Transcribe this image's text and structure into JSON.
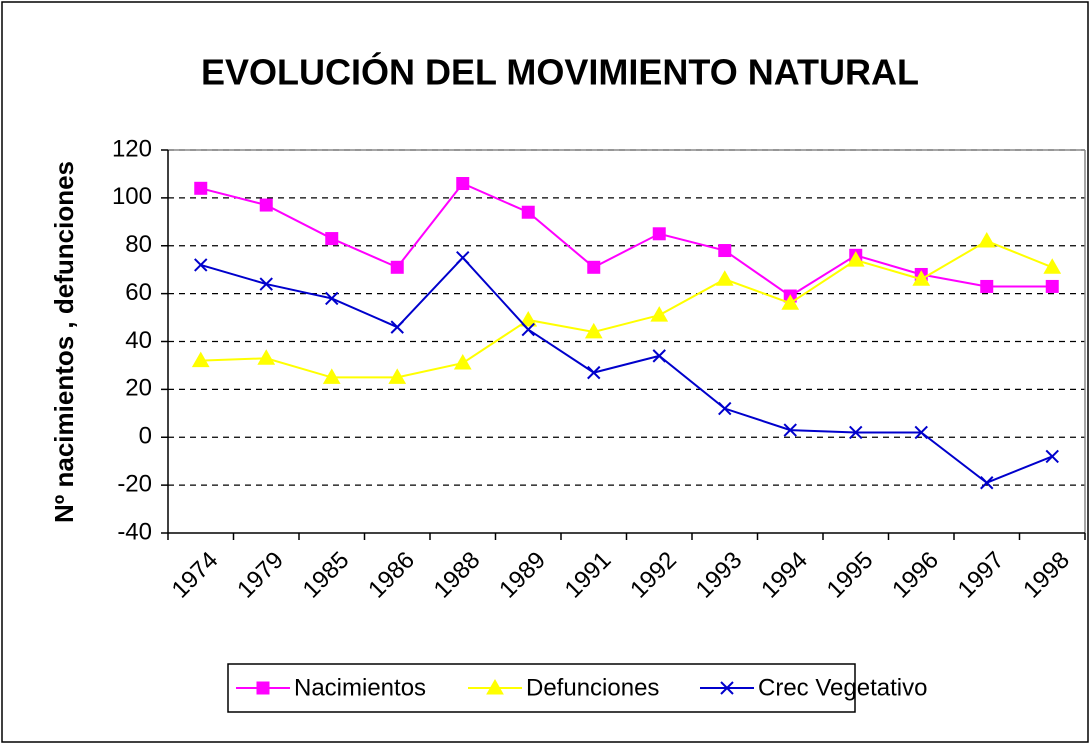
{
  "chart_data": {
    "type": "line",
    "title": "EVOLUCIÓN DEL MOVIMIENTO NATURAL",
    "y_label": "Nº nacimientos , defunciones",
    "categories": [
      "1974",
      "1979",
      "1985",
      "1986",
      "1988",
      "1989",
      "1991",
      "1992",
      "1993",
      "1994",
      "1995",
      "1996",
      "1997",
      "1998"
    ],
    "series": [
      {
        "name": "Nacimientos",
        "color": "#ff00ff",
        "marker": "square",
        "values": [
          104,
          97,
          83,
          71,
          106,
          94,
          71,
          85,
          78,
          59,
          76,
          68,
          63,
          63
        ]
      },
      {
        "name": "Defunciones",
        "color": "#ffff00",
        "marker": "triangle",
        "values": [
          32,
          33,
          25,
          25,
          31,
          49,
          44,
          51,
          66,
          56,
          74,
          66,
          82,
          71
        ]
      },
      {
        "name": "Crec Vegetativo",
        "color": "#0000cc",
        "marker": "x",
        "values": [
          72,
          64,
          58,
          46,
          75,
          45,
          27,
          34,
          12,
          3,
          2,
          2,
          -19,
          -8
        ]
      }
    ],
    "ylim": [
      -40,
      120
    ],
    "yticks": [
      -40,
      -20,
      0,
      20,
      40,
      60,
      80,
      100,
      120
    ],
    "grid": true,
    "legend": "bottom"
  }
}
